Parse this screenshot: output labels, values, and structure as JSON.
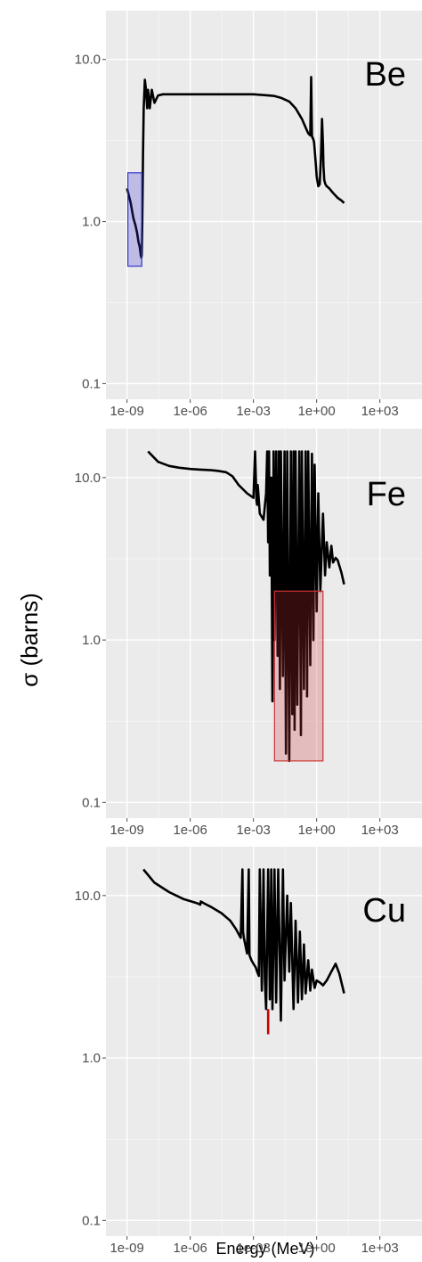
{
  "ylabel": "σ (barns)",
  "xlabel": "Energy (MeV)",
  "chart_data": [
    {
      "type": "line",
      "annotation": "Be",
      "xscale": "log",
      "yscale": "log",
      "xlim": [
        1e-10,
        100000.0
      ],
      "ylim": [
        0.08,
        20
      ],
      "xticks": [
        1e-09,
        1e-06,
        0.001,
        1,
        1000.0
      ],
      "xtick_labels": [
        "1e-09",
        "1e-06",
        "1e-03",
        "1e+00",
        "1e+03"
      ],
      "yticks": [
        0.1,
        1,
        10
      ],
      "ytick_labels": [
        "0.1",
        "1.0",
        "10.0"
      ],
      "grid": true,
      "highlight": {
        "x": [
          1.1e-09,
          5e-09
        ],
        "y": [
          0.53,
          2.0
        ],
        "color": "#3333cc"
      },
      "series": [
        {
          "x": [
            1e-09,
            1.5e-09,
            2e-09,
            2.5e-09,
            3e-09,
            3.5e-09,
            4e-09,
            4.3e-09,
            4.5e-09,
            4.8e-09,
            5e-09,
            5.3e-09,
            5.7e-09,
            6.2e-09,
            7e-09,
            8e-09,
            9e-09,
            1e-08,
            1.2e-08,
            1.5e-08,
            2e-08,
            3e-08,
            5e-08,
            1e-07,
            1e-06,
            1e-05,
            0.0001,
            0.001,
            0.005,
            0.01,
            0.02,
            0.05,
            0.1,
            0.2,
            0.3,
            0.4,
            0.5,
            0.55,
            0.6,
            0.62,
            0.65,
            0.7,
            0.75,
            0.8,
            0.9,
            1.0,
            1.2,
            1.4,
            1.6,
            1.8,
            2.0,
            2.1,
            2.3,
            2.6,
            3.0,
            4.0,
            6.0,
            10,
            15,
            20
          ],
          "y": [
            1.6,
            1.3,
            1.05,
            0.95,
            0.85,
            0.75,
            0.7,
            0.65,
            0.62,
            0.6,
            0.62,
            1.0,
            2.5,
            5.0,
            7.5,
            6.5,
            5.0,
            6.5,
            5.0,
            6.5,
            5.4,
            6.0,
            6.1,
            6.1,
            6.1,
            6.1,
            6.1,
            6.1,
            6.0,
            5.95,
            5.8,
            5.5,
            5.0,
            4.3,
            3.8,
            3.5,
            3.4,
            7.8,
            3.4,
            3.3,
            3.3,
            3.2,
            3.1,
            2.8,
            2.3,
            1.9,
            1.65,
            1.7,
            2.5,
            4.3,
            3.0,
            2.2,
            1.8,
            1.7,
            1.65,
            1.6,
            1.5,
            1.4,
            1.35,
            1.3
          ],
          "color": "#000000"
        }
      ]
    },
    {
      "type": "line",
      "annotation": "Fe",
      "xscale": "log",
      "yscale": "log",
      "xlim": [
        1e-10,
        100000.0
      ],
      "ylim": [
        0.08,
        20
      ],
      "xticks": [
        1e-09,
        1e-06,
        0.001,
        1,
        1000.0
      ],
      "xtick_labels": [
        "1e-09",
        "1e-06",
        "1e-03",
        "1e+00",
        "1e+03"
      ],
      "yticks": [
        0.1,
        1,
        10
      ],
      "ytick_labels": [
        "0.1",
        "1.0",
        "10.0"
      ],
      "grid": true,
      "highlight": {
        "x": [
          0.01,
          2.0
        ],
        "y": [
          0.18,
          2.0
        ],
        "color": "#cc3333"
      },
      "series": [
        {
          "x": [
            1e-08,
            3e-08,
            1e-07,
            3e-07,
            1e-06,
            3e-06,
            1e-05,
            2e-05,
            5e-05,
            0.0001,
            0.0002,
            0.0005,
            0.001,
            0.0012,
            0.0014,
            0.0015,
            0.0016,
            0.002,
            0.003,
            0.004,
            0.0045,
            0.005,
            0.0055,
            0.006,
            0.007,
            0.008,
            0.009,
            0.01,
            0.012,
            0.014,
            0.016,
            0.018,
            0.02,
            0.025,
            0.03,
            0.035,
            0.04,
            0.05,
            0.06,
            0.07,
            0.08,
            0.09,
            0.1,
            0.12,
            0.15,
            0.18,
            0.2,
            0.25,
            0.3,
            0.35,
            0.4,
            0.5,
            0.6,
            0.7,
            0.8,
            1.0,
            1.2,
            1.5,
            2.0,
            2.5,
            3.0,
            4.0,
            5.0,
            6.0,
            8.0,
            10,
            15,
            20
          ],
          "y": [
            14.5,
            12.5,
            11.8,
            11.5,
            11.3,
            11.2,
            11.1,
            11.0,
            10.8,
            10.2,
            9.0,
            8.0,
            7.5,
            14.5,
            7.2,
            6.8,
            9.0,
            6.0,
            5.5,
            8.0,
            14.5,
            4.0,
            14.5,
            2.5,
            10.0,
            0.42,
            14.5,
            1.0,
            14.5,
            0.8,
            14.5,
            0.5,
            14.5,
            0.6,
            14.5,
            0.2,
            14.5,
            0.18,
            14.5,
            0.35,
            14.5,
            0.28,
            14.5,
            0.4,
            14.5,
            0.26,
            14.5,
            0.5,
            14.5,
            0.45,
            14.5,
            0.7,
            14.0,
            1.0,
            12.0,
            1.5,
            8.0,
            2.0,
            6.0,
            2.5,
            4.0,
            2.8,
            3.8,
            3.0,
            3.2,
            3.1,
            2.6,
            2.2
          ],
          "color": "#000000"
        }
      ]
    },
    {
      "type": "line",
      "annotation": "Cu",
      "xscale": "log",
      "yscale": "log",
      "xlim": [
        1e-10,
        100000.0
      ],
      "ylim": [
        0.08,
        20
      ],
      "xticks": [
        1e-09,
        1e-06,
        0.001,
        1,
        1000.0
      ],
      "xtick_labels": [
        "1e-09",
        "1e-06",
        "1e-03",
        "1e+00",
        "1e+03"
      ],
      "yticks": [
        0.1,
        1,
        10
      ],
      "ytick_labels": [
        "0.1",
        "1.0",
        "10.0"
      ],
      "grid": true,
      "highlight_line": {
        "x": [
          0.005,
          0.005
        ],
        "y": [
          1.4,
          2.0
        ],
        "color": "#cc0000"
      },
      "series": [
        {
          "x": [
            6e-09,
            2e-08,
            1e-07,
            5e-07,
            2e-06,
            3e-06,
            3.2e-06,
            5e-06,
            1e-05,
            3e-05,
            8e-05,
            0.00015,
            0.00025,
            0.0003,
            0.00032,
            0.00035,
            0.0005,
            0.0006,
            0.00065,
            0.0008,
            0.001,
            0.0013,
            0.0015,
            0.0018,
            0.002,
            0.0025,
            0.003,
            0.0035,
            0.004,
            0.005,
            0.006,
            0.007,
            0.008,
            0.01,
            0.012,
            0.015,
            0.02,
            0.025,
            0.03,
            0.04,
            0.05,
            0.06,
            0.08,
            0.1,
            0.13,
            0.16,
            0.2,
            0.25,
            0.3,
            0.4,
            0.5,
            0.6,
            0.8,
            1.0,
            1.5,
            2.0,
            3.0,
            5.0,
            8.0,
            12,
            20
          ],
          "y": [
            14.5,
            12.0,
            10.5,
            9.5,
            9.0,
            8.8,
            9.2,
            8.9,
            8.5,
            7.8,
            7.0,
            6.2,
            5.5,
            14.5,
            6.0,
            5.5,
            4.4,
            14.5,
            4.3,
            4.0,
            3.8,
            3.6,
            3.4,
            3.2,
            14.5,
            2.6,
            14.5,
            3.0,
            2.0,
            14.5,
            2.3,
            14.5,
            2.0,
            14.5,
            2.2,
            14.5,
            1.7,
            14.5,
            3.0,
            10.0,
            3.4,
            9.0,
            2.0,
            7.0,
            2.2,
            6.0,
            2.3,
            5.0,
            2.5,
            4.0,
            2.6,
            3.5,
            2.7,
            3.0,
            2.9,
            2.8,
            3.0,
            3.4,
            3.8,
            3.3,
            2.5
          ],
          "color": "#000000"
        }
      ]
    }
  ]
}
